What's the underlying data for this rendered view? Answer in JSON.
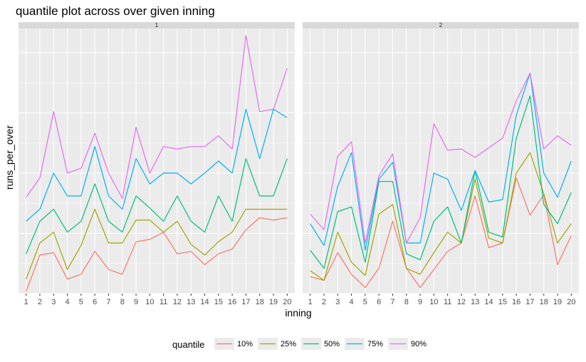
{
  "chart_data": {
    "type": "line",
    "title": "quantile plot across over given inning",
    "xlabel": "inning",
    "ylabel": "runs_per_over",
    "x": [
      1,
      2,
      3,
      4,
      5,
      6,
      7,
      8,
      9,
      10,
      11,
      12,
      13,
      14,
      15,
      16,
      17,
      18,
      19,
      20
    ],
    "ylim": [
      0,
      22
    ],
    "y_tick_labels_shown": false,
    "grid": true,
    "legend": {
      "title": "quantile",
      "position": "bottom"
    },
    "colors": {
      "10%": "#F8766D",
      "25%": "#A3A500",
      "50%": "#00BF7D",
      "75%": "#00B0F6",
      "90%": "#E76BF3"
    },
    "panels": [
      {
        "strip": "1",
        "series": [
          {
            "name": "10%",
            "values": [
              0.2,
              3.2,
              3.4,
              1.2,
              1.6,
              3.5,
              2.0,
              1.6,
              4.3,
              4.5,
              5.1,
              3.3,
              3.5,
              2.4,
              3.3,
              3.7,
              5.3,
              6.3,
              6.1,
              6.3
            ]
          },
          {
            "name": "25%",
            "values": [
              1.2,
              4.2,
              5.1,
              2.0,
              4.0,
              7.0,
              4.2,
              4.2,
              6.1,
              6.1,
              5.1,
              6.0,
              4.1,
              3.2,
              4.3,
              5.1,
              7.0,
              7.0,
              7.0,
              7.0
            ]
          },
          {
            "name": "50%",
            "values": [
              3.3,
              6.0,
              7.0,
              5.1,
              6.0,
              9.1,
              6.0,
              5.1,
              8.1,
              7.1,
              6.0,
              8.1,
              6.0,
              5.1,
              8.1,
              6.0,
              11.2,
              8.1,
              8.1,
              11.2
            ]
          },
          {
            "name": "75%",
            "values": [
              6.0,
              7.0,
              10.0,
              8.1,
              8.1,
              12.2,
              8.1,
              7.0,
              11.2,
              9.1,
              10.0,
              10.0,
              9.1,
              10.0,
              11.0,
              10.0,
              15.3,
              11.2,
              15.3,
              14.6
            ]
          },
          {
            "name": "90%",
            "values": [
              8.0,
              9.6,
              15.1,
              10.0,
              10.4,
              13.3,
              10.0,
              7.9,
              13.8,
              10.0,
              12.2,
              12.0,
              12.2,
              12.2,
              13.1,
              12.0,
              21.4,
              15.1,
              15.3,
              18.7
            ]
          }
        ]
      },
      {
        "strip": "2",
        "series": [
          {
            "name": "10%",
            "values": [
              1.4,
              1.1,
              3.4,
              1.6,
              0.5,
              2.1,
              6.0,
              2.1,
              0.5,
              2.0,
              3.5,
              4.2,
              8.1,
              3.8,
              4.2,
              9.6,
              6.5,
              8.2,
              2.4,
              4.8
            ]
          },
          {
            "name": "25%",
            "values": [
              1.9,
              1.1,
              5.1,
              2.6,
              1.5,
              6.6,
              7.4,
              2.1,
              1.6,
              3.4,
              5.1,
              4.2,
              9.5,
              4.6,
              4.2,
              10.0,
              11.7,
              8.3,
              4.2,
              5.8
            ]
          },
          {
            "name": "50%",
            "values": [
              3.6,
              2.1,
              6.8,
              7.2,
              2.6,
              9.3,
              9.3,
              3.3,
              2.8,
              6.0,
              7.2,
              4.2,
              10.2,
              5.1,
              4.7,
              12.9,
              16.4,
              7.4,
              5.8,
              8.4
            ]
          },
          {
            "name": "75%",
            "values": [
              5.8,
              4.0,
              8.9,
              11.7,
              3.6,
              9.5,
              10.9,
              4.2,
              4.2,
              10.0,
              9.5,
              6.9,
              10.2,
              7.6,
              7.8,
              14.8,
              18.3,
              10.0,
              8.0,
              11.0
            ]
          },
          {
            "name": "90%",
            "values": [
              6.6,
              5.3,
              11.4,
              12.6,
              4.2,
              9.8,
              11.6,
              4.2,
              6.3,
              14.1,
              11.9,
              12.0,
              11.3,
              12.1,
              12.9,
              16.0,
              18.3,
              12.0,
              13.1,
              12.3
            ]
          }
        ]
      }
    ]
  }
}
